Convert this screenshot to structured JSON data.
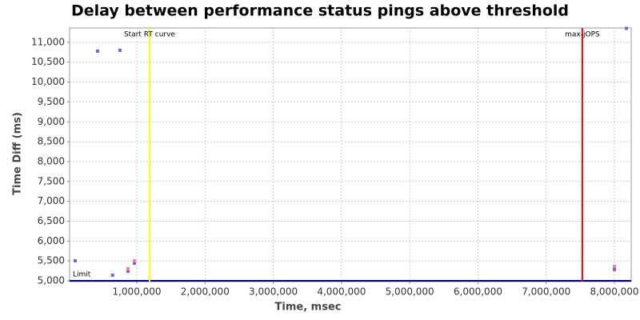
{
  "chart_data": {
    "type": "scatter",
    "title": "Delay between performance status pings above threshold",
    "x_label": "Time, msec",
    "y_label": "Time Diff (ms)",
    "xlim": [
      15000,
      8246000
    ],
    "ylim": [
      4980,
      11360
    ],
    "xticks": [
      {
        "value": 1000000,
        "label": "1,000,000"
      },
      {
        "value": 2000000,
        "label": "2,000,000"
      },
      {
        "value": 3000000,
        "label": "3,000,000"
      },
      {
        "value": 4000000,
        "label": "4,000,000"
      },
      {
        "value": 5000000,
        "label": "5,000,000"
      },
      {
        "value": 6000000,
        "label": "6,000,000"
      },
      {
        "value": 7000000,
        "label": "7,000,000"
      },
      {
        "value": 8000000,
        "label": "8,000,000"
      }
    ],
    "yticks": [
      {
        "value": 5000,
        "label": "5,000"
      },
      {
        "value": 5500,
        "label": "5,500"
      },
      {
        "value": 6000,
        "label": "6,000"
      },
      {
        "value": 6500,
        "label": "6,500"
      },
      {
        "value": 7000,
        "label": "7,000"
      },
      {
        "value": 7500,
        "label": "7,500"
      },
      {
        "value": 8000,
        "label": "8,000"
      },
      {
        "value": 8500,
        "label": "8,500"
      },
      {
        "value": 9000,
        "label": "9,000"
      },
      {
        "value": 9500,
        "label": "9,500"
      },
      {
        "value": 10000,
        "label": "10,000"
      },
      {
        "value": 10500,
        "label": "10,500"
      },
      {
        "value": 11000,
        "label": "11,000"
      }
    ],
    "grid": true,
    "series": [
      {
        "color": "#6a6ad8",
        "x": [
          97000,
          425000,
          753000,
          645000,
          871000,
          965000,
          8176000,
          8000000
        ],
        "values": [
          5503,
          10779,
          10799,
          5141,
          5242,
          5443,
          11350,
          5282
        ]
      },
      {
        "color": "#f080a0",
        "x": [
          871000,
          965000,
          8000000
        ],
        "values": [
          5302,
          5503,
          5362
        ]
      }
    ],
    "vertical_markers": [
      {
        "label": "Start RT curve",
        "value": 1187000,
        "color": "#ffff00"
      },
      {
        "label": "max-jOPS",
        "value": 7530000,
        "color": "#ff0000"
      }
    ],
    "horizontal_markers": [
      {
        "label": "Limit",
        "value": 5000,
        "color": "#000080"
      }
    ]
  }
}
